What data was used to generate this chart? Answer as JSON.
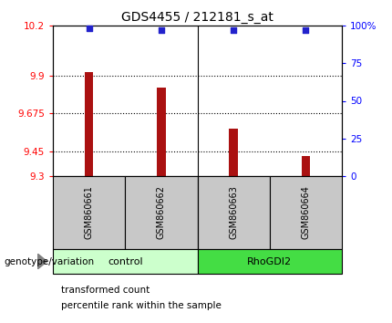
{
  "title": "GDS4455 / 212181_s_at",
  "samples": [
    "GSM860661",
    "GSM860662",
    "GSM860663",
    "GSM860664"
  ],
  "bar_values": [
    9.92,
    9.83,
    9.585,
    9.42
  ],
  "percentile_values": [
    98,
    97,
    97,
    97
  ],
  "ylim_left": [
    9.3,
    10.2
  ],
  "ylim_right": [
    0,
    100
  ],
  "yticks_left": [
    9.3,
    9.45,
    9.675,
    9.9,
    10.2
  ],
  "ytick_labels_left": [
    "9.3",
    "9.45",
    "9.675",
    "9.9",
    "10.2"
  ],
  "yticks_right": [
    0,
    25,
    50,
    75,
    100
  ],
  "ytick_labels_right": [
    "0",
    "25",
    "50",
    "75",
    "100%"
  ],
  "bar_color": "#AA1111",
  "dot_color": "#2222CC",
  "control_color_light": "#CCFFCC",
  "rhodgi2_color": "#44DD44",
  "sample_bg_color": "#C8C8C8",
  "legend_red_label": "transformed count",
  "legend_blue_label": "percentile rank within the sample",
  "genotype_label": "genotype/variation",
  "bar_width": 0.12
}
